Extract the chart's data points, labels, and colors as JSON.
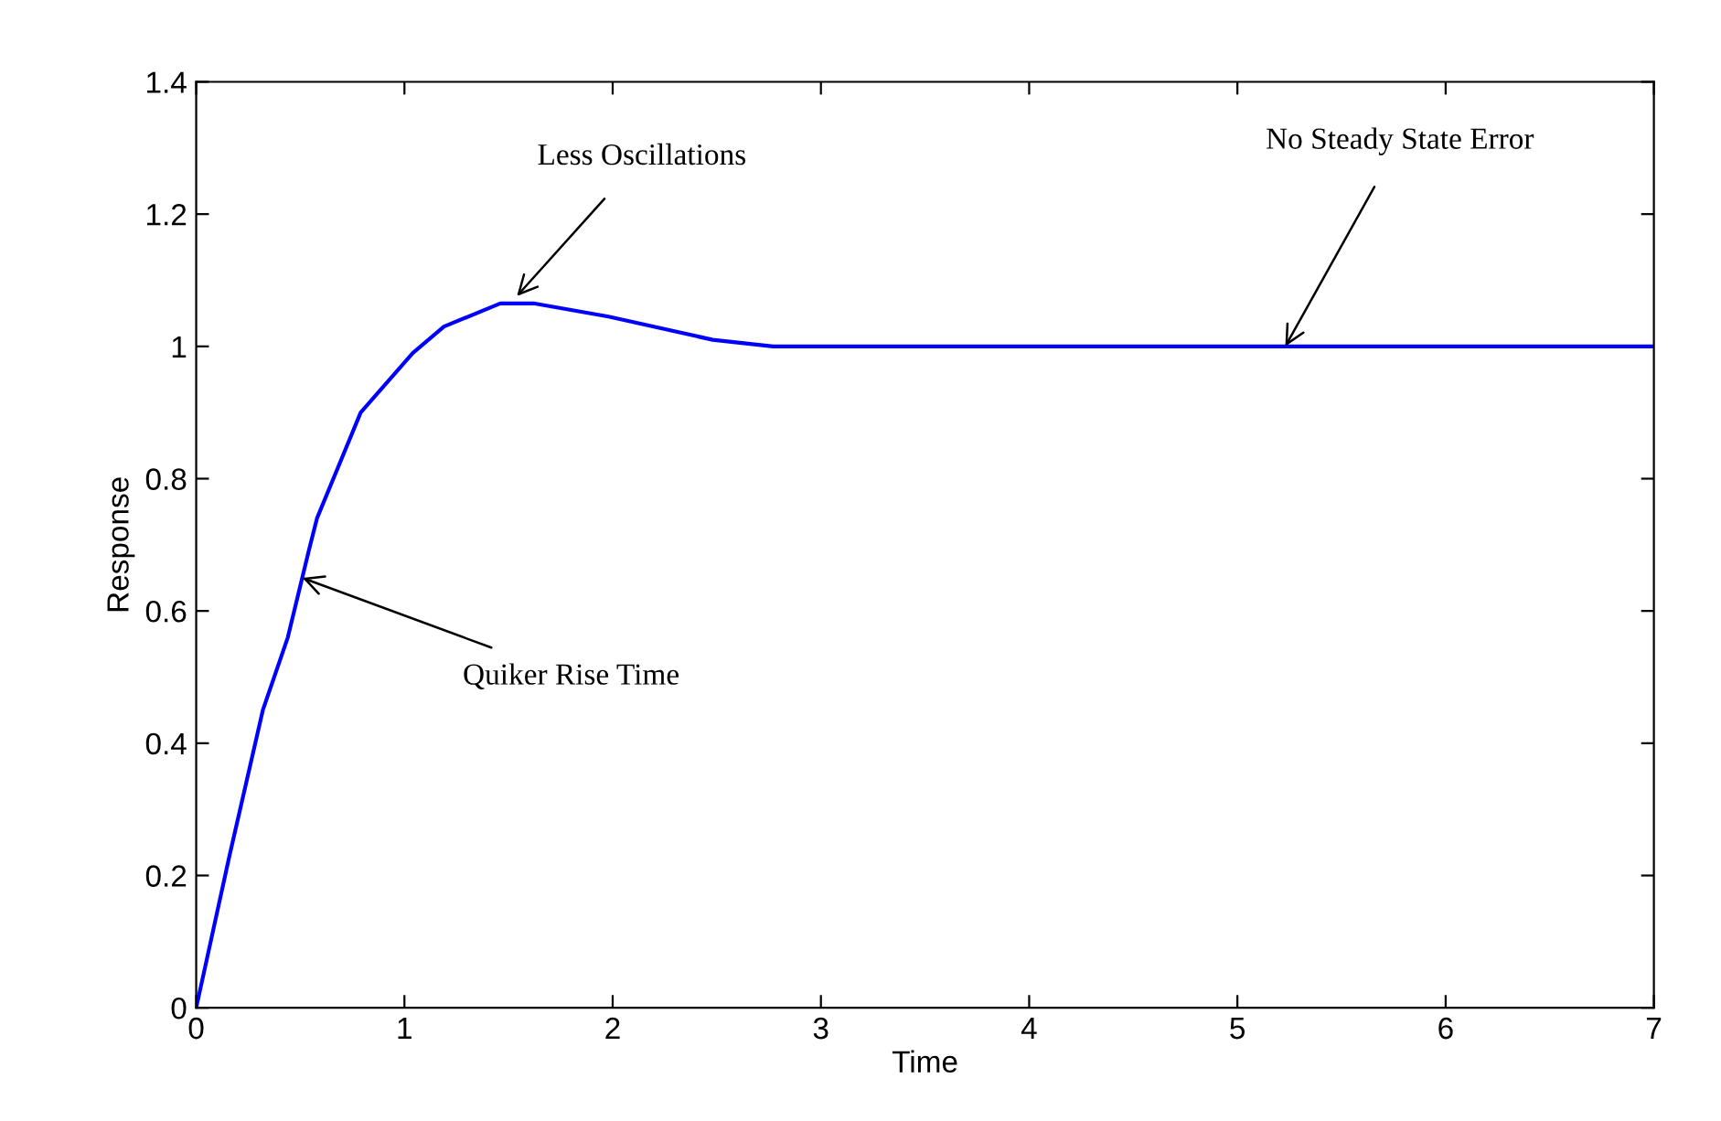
{
  "chart_data": {
    "type": "line",
    "xlabel": "Time",
    "ylabel": "Response",
    "x": [
      0,
      0.16,
      0.32,
      0.44,
      0.54,
      0.58,
      0.79,
      1.04,
      1.19,
      1.46,
      1.62,
      1.98,
      2.48,
      2.77,
      3,
      4,
      5,
      6,
      7
    ],
    "series": [
      {
        "color": "#0000ff",
        "values": [
          0,
          0.23,
          0.45,
          0.56,
          0.69,
          0.74,
          0.9,
          0.99,
          1.03,
          1.065,
          1.065,
          1.045,
          1.01,
          1.0,
          1.0,
          1.0,
          1.0,
          1.0,
          1.0
        ]
      }
    ],
    "xlim": [
      0,
      7
    ],
    "ylim": [
      0,
      1.4
    ],
    "xticks": [
      0,
      1,
      2,
      3,
      4,
      5,
      6,
      7
    ],
    "yticks": [
      0,
      0.2,
      0.4,
      0.6,
      0.8,
      1,
      1.2,
      1.4
    ],
    "grid": false,
    "marker": "none",
    "line_style": "solid",
    "annotations": [
      {
        "text": "Less Oscillations",
        "x": 1.54,
        "y": 1.076
      },
      {
        "text": "No Steady State Error",
        "x": 5.23,
        "y": 1.0
      },
      {
        "text": "Quiker Rise Time",
        "x": 0.51,
        "y": 0.65
      }
    ]
  }
}
